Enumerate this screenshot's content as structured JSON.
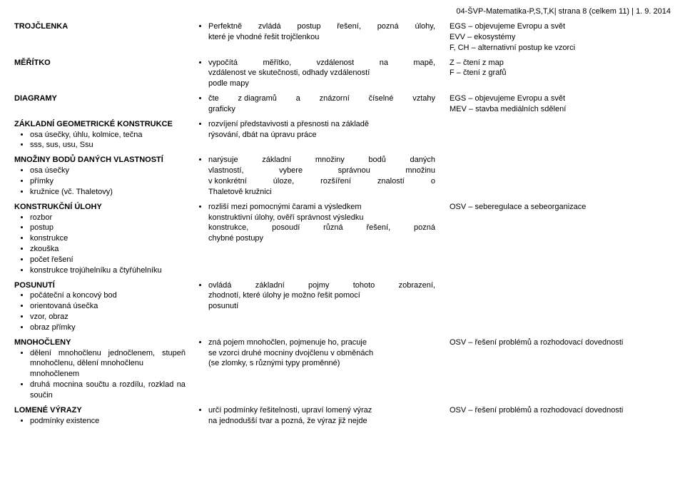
{
  "header": "04-ŠVP-Matematika-P,S,T,K| strana 8 (celkem 11) | 1. 9. 2014",
  "rows": [
    {
      "col1_title": "TROJČLENKA",
      "col1_items": [],
      "col2_bullets": [
        {
          "type": "justify",
          "parts": [
            "Perfektně",
            "zvládá",
            "postup",
            "řešení,",
            "pozná",
            "úlohy,"
          ]
        },
        {
          "type": "line",
          "text": "které je vhodné řešit trojčlenkou"
        }
      ],
      "col3_lines": [
        "EGS – objevujeme Evropu a svět",
        "EVV – ekosystémy",
        "F, CH – alternativní postup ke vzorci"
      ]
    },
    {
      "col1_title": "MĚŘÍTKO",
      "col1_items": [],
      "col2_bullets": [
        {
          "type": "justify",
          "parts": [
            "vypočítá",
            "měřítko,",
            "vzdálenost",
            "na",
            "mapě,"
          ]
        },
        {
          "type": "line",
          "text": "vzdálenost ve skutečnosti, odhady vzdáleností"
        },
        {
          "type": "line",
          "text": "podle mapy"
        }
      ],
      "col3_lines": [
        "Z – čtení z map",
        "F – čtení z grafů"
      ]
    },
    {
      "col1_title": "DIAGRAMY",
      "col1_items": [],
      "col2_bullets": [
        {
          "type": "justify",
          "parts": [
            "čte",
            "z diagramů",
            "a",
            "znázorní",
            "číselné",
            "vztahy"
          ]
        },
        {
          "type": "line",
          "text": "graficky"
        }
      ],
      "col3_lines": [
        "EGS – objevujeme Evropu a svět",
        "MEV – stavba mediálních sdělení"
      ]
    },
    {
      "col1_title": "ZÁKLADNÍ GEOMETRICKÉ KONSTRUKCE",
      "col1_items": [
        "osa úsečky, úhlu, kolmice, tečna",
        "sss, sus, usu, Ssu"
      ],
      "col2_bullets": [
        {
          "type": "line",
          "text": "rozvíjení představivosti a přesnosti na základě"
        },
        {
          "type": "line",
          "text": "rýsování, dbát na úpravu práce"
        }
      ],
      "col3_lines": []
    },
    {
      "col1_title": "MNOŽINY BODŮ DANÝCH VLASTNOSTÍ",
      "col1_items": [
        "osa úsečky",
        "přímky",
        "kružnice (vč. Thaletovy)"
      ],
      "col2_bullets": [
        {
          "type": "justify",
          "parts": [
            "narýsuje",
            "základní",
            "množiny",
            "bodů",
            "daných"
          ]
        },
        {
          "type": "justify",
          "parts": [
            "vlastností,",
            "vybere",
            "správnou",
            "množinu"
          ]
        },
        {
          "type": "justify",
          "parts": [
            "v konkrétní",
            "úloze,",
            "rozšíření",
            "znalostí",
            "o"
          ]
        },
        {
          "type": "line",
          "text": "Thaletově kružnici"
        }
      ],
      "col3_lines": []
    },
    {
      "col1_title": "KONSTRUKČNÍ ÚLOHY",
      "col1_items": [
        "rozbor",
        "postup",
        "konstrukce",
        "zkouška",
        "počet řešení",
        "konstrukce trojúhelníku a čtyřúhelníku"
      ],
      "col2_bullets": [
        {
          "type": "line",
          "text": "rozliší mezi pomocnými čarami a výsledkem"
        },
        {
          "type": "line",
          "text": "konstruktivní úlohy, ověří správnost výsledku"
        },
        {
          "type": "justify",
          "parts": [
            "konstrukce,",
            "posoudí",
            "různá",
            "řešení,",
            "pozná"
          ]
        },
        {
          "type": "line",
          "text": "chybné postupy"
        }
      ],
      "col3_lines": [
        "OSV – seberegulace a sebeorganizace"
      ]
    },
    {
      "col1_title": "POSUNUTÍ",
      "col1_items": [
        "počáteční a koncový bod",
        "orientovaná úsečka",
        "vzor, obraz",
        "obraz přímky"
      ],
      "col2_bullets": [
        {
          "type": "justify",
          "parts": [
            "ovládá",
            "základní",
            "pojmy",
            "tohoto",
            "zobrazení,"
          ]
        },
        {
          "type": "line",
          "text": "zhodnotí, které úlohy je možno řešit pomocí"
        },
        {
          "type": "line",
          "text": "posunutí"
        }
      ],
      "col3_lines": []
    },
    {
      "col1_title": "MNOHOČLENY",
      "col1_items": [
        "dělení mnohočlenu jednočlenem, stupeň mnohočlenu, dělení mnohočlenu mnohočlenem",
        "druhá mocnina součtu a rozdílu, rozklad na součin"
      ],
      "col1_items_justify": [
        [
          [
            "dělení",
            "mnohočlenu",
            "jednočlenem,",
            "stupeň"
          ],
          "mnohočlenu, dělení mnohočlenu mnohočlenem"
        ],
        [
          [
            "druhá",
            "mocnina",
            "součtu",
            "a",
            "rozdílu,",
            "rozklad",
            "na"
          ],
          "součin"
        ]
      ],
      "col2_bullets": [
        {
          "type": "line",
          "text": "zná pojem mnohočlen, pojmenuje ho, pracuje"
        },
        {
          "type": "line",
          "text": "se vzorci druhé mocniny dvojčlenu v obměnách"
        },
        {
          "type": "line",
          "text": "(se zlomky, s různými typy proměnné)"
        }
      ],
      "col3_lines": [
        "OSV – řešení problémů a rozhodovací dovednosti"
      ]
    },
    {
      "col1_title": "LOMENÉ VÝRAZY",
      "col1_items": [
        "podmínky existence"
      ],
      "col2_bullets": [
        {
          "type": "line",
          "text": "určí podmínky řešitelnosti, upraví lomený výraz"
        },
        {
          "type": "line",
          "text": "na jednodušší tvar a pozná, že výraz již nejde"
        }
      ],
      "col3_lines": [
        "OSV – řešení problémů a rozhodovací dovednosti"
      ]
    }
  ]
}
